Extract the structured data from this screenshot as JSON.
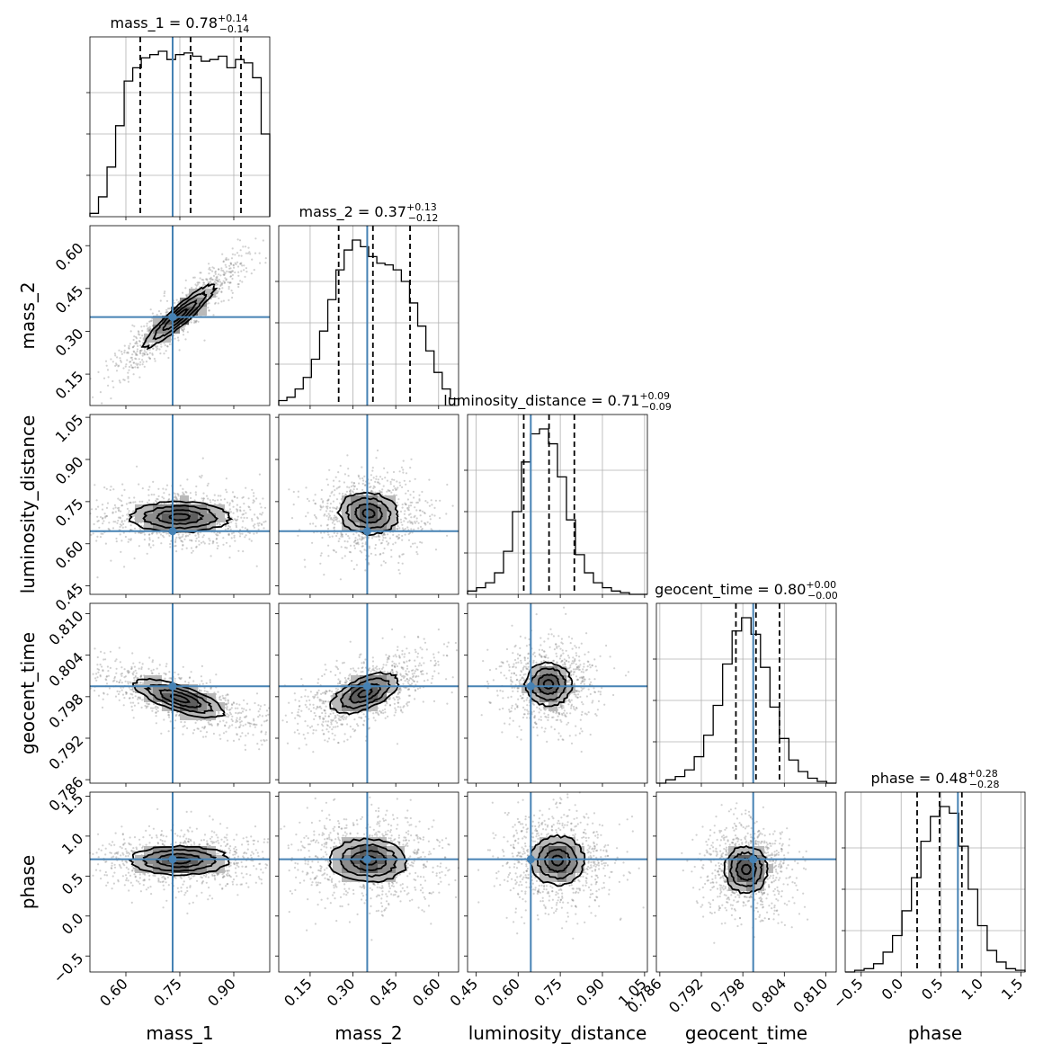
{
  "chart_data": {
    "type": "corner",
    "parameters": [
      "mass_1",
      "mass_2",
      "luminosity_distance",
      "geocent_time",
      "phase"
    ],
    "titles": [
      {
        "param": "mass_1",
        "median": "0.78",
        "plus": "+0.14",
        "minus": "−0.14"
      },
      {
        "param": "mass_2",
        "median": "0.37",
        "plus": "+0.13",
        "minus": "−0.12"
      },
      {
        "param": "luminosity_distance",
        "median": "0.71",
        "plus": "+0.09",
        "minus": "−0.09"
      },
      {
        "param": "geocent_time",
        "median": "0.80",
        "plus": "+0.00",
        "minus": "−0.00"
      },
      {
        "param": "phase",
        "median": "0.48",
        "plus": "+0.28",
        "minus": "−0.28"
      }
    ],
    "axis_labels": [
      "mass_1",
      "mass_2",
      "luminosity_distance",
      "geocent_time",
      "phase"
    ],
    "ranges": [
      [
        0.5,
        1.0
      ],
      [
        0.04,
        0.67
      ],
      [
        0.42,
        1.06
      ],
      [
        0.7855,
        0.8115
      ],
      [
        -0.7,
        1.55
      ]
    ],
    "ticks": [
      {
        "values": [
          0.6,
          0.75,
          0.9
        ],
        "labels": [
          "0.60",
          "0.75",
          "0.90"
        ]
      },
      {
        "values": [
          0.15,
          0.3,
          0.45,
          0.6
        ],
        "labels": [
          "0.15",
          "0.30",
          "0.45",
          "0.60"
        ]
      },
      {
        "values": [
          0.45,
          0.6,
          0.75,
          0.9,
          1.05
        ],
        "labels": [
          "0.45",
          "0.60",
          "0.75",
          "0.90",
          "1.05"
        ]
      },
      {
        "values": [
          0.786,
          0.792,
          0.798,
          0.804,
          0.81
        ],
        "labels": [
          "0.786",
          "0.792",
          "0.798",
          "0.804",
          "0.810"
        ]
      },
      {
        "values": [
          -0.5,
          0.0,
          0.5,
          1.0,
          1.5
        ],
        "labels": [
          "−0.5",
          "0.0",
          "0.5",
          "1.0",
          "1.5"
        ]
      }
    ],
    "truths": [
      0.73,
      0.35,
      0.645,
      0.7995,
      0.71
    ],
    "quantiles": [
      [
        0.64,
        0.78,
        0.92
      ],
      [
        0.25,
        0.37,
        0.5
      ],
      [
        0.62,
        0.71,
        0.8
      ],
      [
        0.797,
        0.7999,
        0.8033
      ],
      [
        0.2,
        0.48,
        0.76
      ]
    ],
    "histograms": [
      {
        "counts": [
          0.02,
          0.12,
          0.3,
          0.55,
          0.82,
          0.9,
          0.96,
          0.98,
          1.0,
          0.95,
          0.98,
          0.99,
          0.97,
          0.94,
          0.95,
          0.97,
          0.9,
          0.95,
          0.93,
          0.84,
          0.5
        ]
      },
      {
        "counts": [
          0.03,
          0.05,
          0.1,
          0.17,
          0.28,
          0.45,
          0.64,
          0.82,
          0.94,
          1.0,
          0.96,
          0.9,
          0.86,
          0.85,
          0.82,
          0.75,
          0.62,
          0.48,
          0.33,
          0.2,
          0.1,
          0.04
        ]
      },
      {
        "counts": [
          0.02,
          0.04,
          0.07,
          0.13,
          0.26,
          0.5,
          0.8,
          0.97,
          1.0,
          0.91,
          0.71,
          0.45,
          0.24,
          0.13,
          0.07,
          0.04,
          0.02,
          0.01,
          0.0,
          0.0
        ]
      },
      {
        "counts": [
          0.0,
          0.02,
          0.04,
          0.08,
          0.16,
          0.29,
          0.47,
          0.72,
          0.92,
          1.0,
          0.9,
          0.7,
          0.46,
          0.27,
          0.14,
          0.07,
          0.03,
          0.01,
          0.0
        ]
      },
      {
        "counts": [
          0.0,
          0.01,
          0.02,
          0.05,
          0.12,
          0.22,
          0.37,
          0.57,
          0.79,
          0.94,
          1.0,
          0.96,
          0.76,
          0.5,
          0.28,
          0.13,
          0.06,
          0.02,
          0.01
        ]
      }
    ],
    "colors": {
      "truth": "#4682b4",
      "hist": "#000000",
      "grid": "#b0b0b0"
    }
  }
}
